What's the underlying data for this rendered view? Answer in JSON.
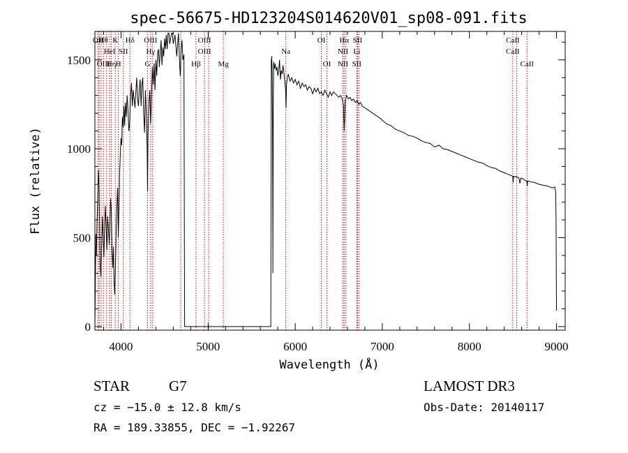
{
  "chart_data": {
    "type": "line",
    "title": "spec-56675-HD123204S014620V01_sp08-091.fits",
    "xlabel": "Wavelength (Å)",
    "ylabel": "Flux (relative)",
    "xlim": [
      3700,
      9100
    ],
    "ylim": [
      -20,
      1660
    ],
    "xticks": [
      4000,
      5000,
      6000,
      7000,
      8000,
      9000
    ],
    "yticks": [
      0,
      500,
      1000,
      1500
    ],
    "line_color": "#000000",
    "marker_color": "#cc0000",
    "series": [
      {
        "points": [
          [
            3700,
            0
          ],
          [
            3705,
            240
          ],
          [
            3712,
            520
          ],
          [
            3718,
            400
          ],
          [
            3725,
            600
          ],
          [
            3732,
            700
          ],
          [
            3740,
            880
          ],
          [
            3748,
            780
          ],
          [
            3755,
            520
          ],
          [
            3762,
            330
          ],
          [
            3770,
            280
          ],
          [
            3778,
            450
          ],
          [
            3786,
            620
          ],
          [
            3795,
            500
          ],
          [
            3803,
            390
          ],
          [
            3812,
            580
          ],
          [
            3820,
            680
          ],
          [
            3830,
            540
          ],
          [
            3838,
            430
          ],
          [
            3846,
            620
          ],
          [
            3855,
            560
          ],
          [
            3864,
            460
          ],
          [
            3872,
            560
          ],
          [
            3880,
            720
          ],
          [
            3888,
            660
          ],
          [
            3897,
            420
          ],
          [
            3905,
            330
          ],
          [
            3912,
            450
          ],
          [
            3920,
            250
          ],
          [
            3928,
            180
          ],
          [
            3936,
            350
          ],
          [
            3945,
            560
          ],
          [
            3953,
            700
          ],
          [
            3961,
            780
          ],
          [
            3968,
            500
          ],
          [
            3976,
            650
          ],
          [
            3985,
            880
          ],
          [
            3993,
            990
          ],
          [
            4000,
            1060
          ],
          [
            4008,
            1020
          ],
          [
            4016,
            1180
          ],
          [
            4025,
            1120
          ],
          [
            4033,
            1240
          ],
          [
            4042,
            1130
          ],
          [
            4050,
            1260
          ],
          [
            4060,
            1180
          ],
          [
            4070,
            1300
          ],
          [
            4080,
            1220
          ],
          [
            4090,
            1100
          ],
          [
            4100,
            1150
          ],
          [
            4110,
            1300
          ],
          [
            4120,
            1370
          ],
          [
            4130,
            1240
          ],
          [
            4140,
            1330
          ],
          [
            4150,
            1280
          ],
          [
            4160,
            1230
          ],
          [
            4170,
            1320
          ],
          [
            4180,
            1400
          ],
          [
            4190,
            1280
          ],
          [
            4200,
            1240
          ],
          [
            4210,
            1340
          ],
          [
            4220,
            1390
          ],
          [
            4230,
            1240
          ],
          [
            4240,
            1360
          ],
          [
            4250,
            1400
          ],
          [
            4260,
            1200
          ],
          [
            4270,
            1090
          ],
          [
            4280,
            1330
          ],
          [
            4290,
            1210
          ],
          [
            4300,
            1000
          ],
          [
            4305,
            760
          ],
          [
            4310,
            1080
          ],
          [
            4320,
            1260
          ],
          [
            4330,
            1330
          ],
          [
            4340,
            1140
          ],
          [
            4350,
            1290
          ],
          [
            4360,
            1460
          ],
          [
            4370,
            1360
          ],
          [
            4380,
            1480
          ],
          [
            4390,
            1330
          ],
          [
            4400,
            1500
          ],
          [
            4410,
            1410
          ],
          [
            4420,
            1540
          ],
          [
            4430,
            1560
          ],
          [
            4440,
            1460
          ],
          [
            4450,
            1540
          ],
          [
            4460,
            1610
          ],
          [
            4470,
            1470
          ],
          [
            4480,
            1570
          ],
          [
            4490,
            1520
          ],
          [
            4500,
            1620
          ],
          [
            4510,
            1560
          ],
          [
            4520,
            1640
          ],
          [
            4530,
            1560
          ],
          [
            4540,
            1650
          ],
          [
            4550,
            1650
          ],
          [
            4560,
            1590
          ],
          [
            4570,
            1620
          ],
          [
            4580,
            1650
          ],
          [
            4590,
            1650
          ],
          [
            4600,
            1590
          ],
          [
            4620,
            1640
          ],
          [
            4640,
            1520
          ],
          [
            4650,
            1590
          ],
          [
            4660,
            1650
          ],
          [
            4670,
            1510
          ],
          [
            4680,
            1410
          ],
          [
            4690,
            1560
          ],
          [
            4700,
            1610
          ],
          [
            4710,
            1500
          ],
          [
            4722,
            1530
          ],
          [
            4730,
            0
          ],
          [
            5720,
            0
          ],
          [
            5725,
            1490
          ],
          [
            5730,
            1520
          ],
          [
            5736,
            1420
          ],
          [
            5740,
            1100
          ],
          [
            5744,
            300
          ],
          [
            5748,
            1200
          ],
          [
            5753,
            1490
          ],
          [
            5760,
            1450
          ],
          [
            5770,
            1480
          ],
          [
            5780,
            1440
          ],
          [
            5790,
            1460
          ],
          [
            5800,
            1410
          ],
          [
            5810,
            1440
          ],
          [
            5820,
            1500
          ],
          [
            5830,
            1390
          ],
          [
            5840,
            1440
          ],
          [
            5850,
            1420
          ],
          [
            5860,
            1470
          ],
          [
            5870,
            1430
          ],
          [
            5880,
            1380
          ],
          [
            5890,
            1330
          ],
          [
            5895,
            1230
          ],
          [
            5900,
            1360
          ],
          [
            5910,
            1400
          ],
          [
            5920,
            1420
          ],
          [
            5940,
            1380
          ],
          [
            5960,
            1400
          ],
          [
            5980,
            1370
          ],
          [
            6000,
            1390
          ],
          [
            6020,
            1360
          ],
          [
            6040,
            1380
          ],
          [
            6060,
            1340
          ],
          [
            6080,
            1370
          ],
          [
            6100,
            1350
          ],
          [
            6120,
            1360
          ],
          [
            6140,
            1330
          ],
          [
            6160,
            1350
          ],
          [
            6180,
            1340
          ],
          [
            6200,
            1310
          ],
          [
            6220,
            1340
          ],
          [
            6240,
            1320
          ],
          [
            6260,
            1340
          ],
          [
            6280,
            1310
          ],
          [
            6300,
            1320
          ],
          [
            6320,
            1300
          ],
          [
            6340,
            1330
          ],
          [
            6360,
            1310
          ],
          [
            6380,
            1290
          ],
          [
            6400,
            1320
          ],
          [
            6420,
            1300
          ],
          [
            6440,
            1320
          ],
          [
            6460,
            1310
          ],
          [
            6480,
            1300
          ],
          [
            6500,
            1290
          ],
          [
            6520,
            1300
          ],
          [
            6540,
            1280
          ],
          [
            6555,
            1240
          ],
          [
            6562,
            1100
          ],
          [
            6568,
            1160
          ],
          [
            6575,
            1270
          ],
          [
            6590,
            1300
          ],
          [
            6610,
            1280
          ],
          [
            6630,
            1290
          ],
          [
            6650,
            1270
          ],
          [
            6670,
            1280
          ],
          [
            6690,
            1260
          ],
          [
            6710,
            1270
          ],
          [
            6730,
            1250
          ],
          [
            6750,
            1260
          ],
          [
            6770,
            1240
          ],
          [
            6800,
            1230
          ],
          [
            6830,
            1220
          ],
          [
            6860,
            1210
          ],
          [
            6890,
            1200
          ],
          [
            6920,
            1190
          ],
          [
            6950,
            1180
          ],
          [
            6980,
            1170
          ],
          [
            7000,
            1160
          ],
          [
            7050,
            1140
          ],
          [
            7100,
            1130
          ],
          [
            7150,
            1110
          ],
          [
            7200,
            1100
          ],
          [
            7250,
            1090
          ],
          [
            7300,
            1075
          ],
          [
            7350,
            1070
          ],
          [
            7400,
            1060
          ],
          [
            7450,
            1045
          ],
          [
            7500,
            1035
          ],
          [
            7550,
            1030
          ],
          [
            7600,
            1010
          ],
          [
            7650,
            1020
          ],
          [
            7700,
            1000
          ],
          [
            7750,
            995
          ],
          [
            7800,
            985
          ],
          [
            7850,
            975
          ],
          [
            7900,
            965
          ],
          [
            7950,
            955
          ],
          [
            8000,
            945
          ],
          [
            8050,
            935
          ],
          [
            8100,
            925
          ],
          [
            8150,
            920
          ],
          [
            8200,
            905
          ],
          [
            8250,
            895
          ],
          [
            8300,
            890
          ],
          [
            8350,
            875
          ],
          [
            8400,
            865
          ],
          [
            8450,
            855
          ],
          [
            8498,
            845
          ],
          [
            8502,
            810
          ],
          [
            8506,
            845
          ],
          [
            8550,
            840
          ],
          [
            8570,
            835
          ],
          [
            8580,
            805
          ],
          [
            8590,
            835
          ],
          [
            8620,
            830
          ],
          [
            8660,
            815
          ],
          [
            8665,
            790
          ],
          [
            8670,
            820
          ],
          [
            8700,
            815
          ],
          [
            8750,
            810
          ],
          [
            8800,
            800
          ],
          [
            8850,
            795
          ],
          [
            8900,
            790
          ],
          [
            8950,
            780
          ],
          [
            8980,
            785
          ],
          [
            8990,
            760
          ],
          [
            8995,
            600
          ],
          [
            9000,
            90
          ]
        ]
      }
    ],
    "lines": [
      {
        "wl": 3736,
        "top": "OII",
        "mid": "",
        "bot": ""
      },
      {
        "wl": 3750,
        "top": "",
        "mid": "",
        "bot": ""
      },
      {
        "wl": 3771,
        "top": "",
        "mid": "",
        "bot": ""
      },
      {
        "wl": 3798,
        "top": "Hθ",
        "mid": "",
        "bot": "OIII"
      },
      {
        "wl": 3835,
        "top": "",
        "mid": "",
        "bot": ""
      },
      {
        "wl": 3869,
        "top": "",
        "mid": "HeI",
        "bot": ""
      },
      {
        "wl": 3889,
        "top": "",
        "mid": "",
        "bot": "Hη"
      },
      {
        "wl": 3934,
        "top": "K",
        "mid": "",
        "bot": ""
      },
      {
        "wl": 3969,
        "top": "",
        "mid": "",
        "bot": "H"
      },
      {
        "wl": 4026,
        "top": "",
        "mid": "SII",
        "bot": ""
      },
      {
        "wl": 4102,
        "top": "Hδ",
        "mid": "",
        "bot": ""
      },
      {
        "wl": 4304,
        "top": "",
        "mid": "",
        "bot": "G"
      },
      {
        "wl": 4340,
        "top": "OIII",
        "mid": "Hγ",
        "bot": ""
      },
      {
        "wl": 4363,
        "top": "",
        "mid": "",
        "bot": ""
      },
      {
        "wl": 4686,
        "top": "",
        "mid": "",
        "bot": ""
      },
      {
        "wl": 4861,
        "top": "",
        "mid": "",
        "bot": "Hβ"
      },
      {
        "wl": 4959,
        "top": "OIII",
        "mid": "OIII",
        "bot": ""
      },
      {
        "wl": 5007,
        "top": "",
        "mid": "",
        "bot": ""
      },
      {
        "wl": 5175,
        "top": "",
        "mid": "",
        "bot": "Mg"
      },
      {
        "wl": 5893,
        "top": "",
        "mid": "Na",
        "bot": ""
      },
      {
        "wl": 6300,
        "top": "OI",
        "mid": "",
        "bot": ""
      },
      {
        "wl": 6364,
        "top": "",
        "mid": "",
        "bot": "OI"
      },
      {
        "wl": 6548,
        "top": "",
        "mid": "NII",
        "bot": "NII"
      },
      {
        "wl": 6563,
        "top": "Hα",
        "mid": "",
        "bot": ""
      },
      {
        "wl": 6583,
        "top": "",
        "mid": "",
        "bot": ""
      },
      {
        "wl": 6707,
        "top": "",
        "mid": "Li",
        "bot": "SII"
      },
      {
        "wl": 6716,
        "top": "SII",
        "mid": "",
        "bot": ""
      },
      {
        "wl": 6731,
        "top": "",
        "mid": "",
        "bot": ""
      },
      {
        "wl": 8498,
        "top": "CaII",
        "mid": "CaII",
        "bot": ""
      },
      {
        "wl": 8542,
        "top": "",
        "mid": "",
        "bot": ""
      },
      {
        "wl": 8662,
        "top": "",
        "mid": "",
        "bot": "CaII"
      }
    ]
  },
  "info": {
    "object_type": "STAR",
    "subclass": "G7",
    "survey": "LAMOST DR3",
    "redshift": "cz = −15.0 ± 12.8 km/s",
    "obs_date": "Obs-Date: 20140117",
    "coords": "RA = 189.33855, DEC =  −1.92267"
  }
}
